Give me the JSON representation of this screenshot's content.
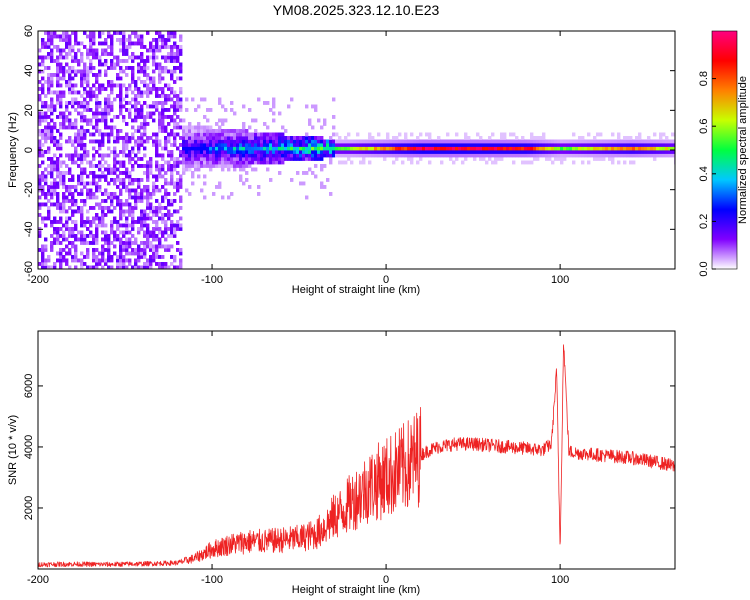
{
  "title": "YM08.2025.323.12.10.E23",
  "colorbar": {
    "label": "Normalized spectral amplitude",
    "range": [
      0.0,
      1.0
    ],
    "ticks": [
      0.0,
      0.2,
      0.4,
      0.6,
      0.8
    ],
    "tick_labels": [
      "0.0",
      "0.2",
      "0.4",
      "0.6",
      "0.8"
    ],
    "colormap": [
      "#ffffff",
      "#8000ff",
      "#0000ff",
      "#00c8ff",
      "#00ff40",
      "#c8ff00",
      "#ff8000",
      "#ff0000",
      "#ff0080"
    ]
  },
  "chart_data": [
    {
      "type": "heatmap",
      "panel": "spectrogram",
      "xlabel": "Height of straight line (km)",
      "ylabel": "Frequency (Hz)",
      "xlim": [
        -200,
        166
      ],
      "ylim": [
        -60,
        60
      ],
      "x_ticks": [
        -200,
        -100,
        0,
        100
      ],
      "x_tick_labels": [
        "-200",
        "-100",
        "0",
        "100"
      ],
      "y_ticks": [
        -60,
        -40,
        -20,
        0,
        20,
        40,
        60
      ],
      "y_tick_labels": [
        "-60",
        "-40",
        "-20",
        "0",
        "20",
        "40",
        "60"
      ],
      "grid": false,
      "regions": [
        {
          "x_range": [
            -200,
            -118
          ],
          "freq_range": [
            -60,
            60
          ],
          "amplitude": 0.05,
          "description": "broadband noise"
        },
        {
          "x_range": [
            -118,
            -30
          ],
          "freq_range": [
            -10,
            12
          ],
          "amplitude": 0.25
        },
        {
          "x_range": [
            -30,
            166
          ],
          "freq_range": [
            -1,
            1
          ],
          "amplitude": 0.9
        }
      ],
      "ridge_amplitude": [
        {
          "x": -110,
          "value": 0.3
        },
        {
          "x": -60,
          "value": 0.45
        },
        {
          "x": -20,
          "value": 0.6
        },
        {
          "x": 20,
          "value": 0.95
        },
        {
          "x": 80,
          "value": 0.9
        },
        {
          "x": 100,
          "value": 0.55
        },
        {
          "x": 140,
          "value": 0.8
        },
        {
          "x": 166,
          "value": 0.6
        }
      ]
    },
    {
      "type": "line",
      "panel": "snr",
      "xlabel": "Height of straight line (km)",
      "ylabel": "SNR (10 * v/v)",
      "xlim": [
        -200,
        166
      ],
      "ylim": [
        0,
        7800
      ],
      "x_ticks": [
        -200,
        -100,
        0,
        100
      ],
      "x_tick_labels": [
        "-200",
        "-100",
        "0",
        "100"
      ],
      "y_ticks": [
        2000,
        4000,
        6000
      ],
      "y_tick_labels": [
        "2000",
        "4000",
        "6000"
      ],
      "grid": false,
      "series": [
        {
          "color": "#ee2222",
          "x": [
            -200,
            -180,
            -160,
            -140,
            -120,
            -110,
            -100,
            -90,
            -80,
            -70,
            -60,
            -50,
            -40,
            -35,
            -30,
            -25,
            -20,
            -15,
            -10,
            -5,
            0,
            5,
            10,
            15,
            20,
            25,
            30,
            40,
            50,
            60,
            70,
            80,
            90,
            95,
            98,
            100,
            102,
            105,
            110,
            120,
            130,
            140,
            150,
            160,
            166
          ],
          "values": [
            150,
            160,
            150,
            170,
            200,
            350,
            650,
            800,
            900,
            900,
            950,
            1000,
            1150,
            1400,
            1700,
            1900,
            2200,
            2450,
            2700,
            2850,
            3000,
            3150,
            3300,
            3500,
            3750,
            3900,
            4000,
            4100,
            4100,
            4050,
            4000,
            3950,
            3900,
            4100,
            6500,
            600,
            7500,
            3850,
            3800,
            3750,
            3700,
            3650,
            3550,
            3450,
            3350
          ]
        }
      ]
    }
  ]
}
